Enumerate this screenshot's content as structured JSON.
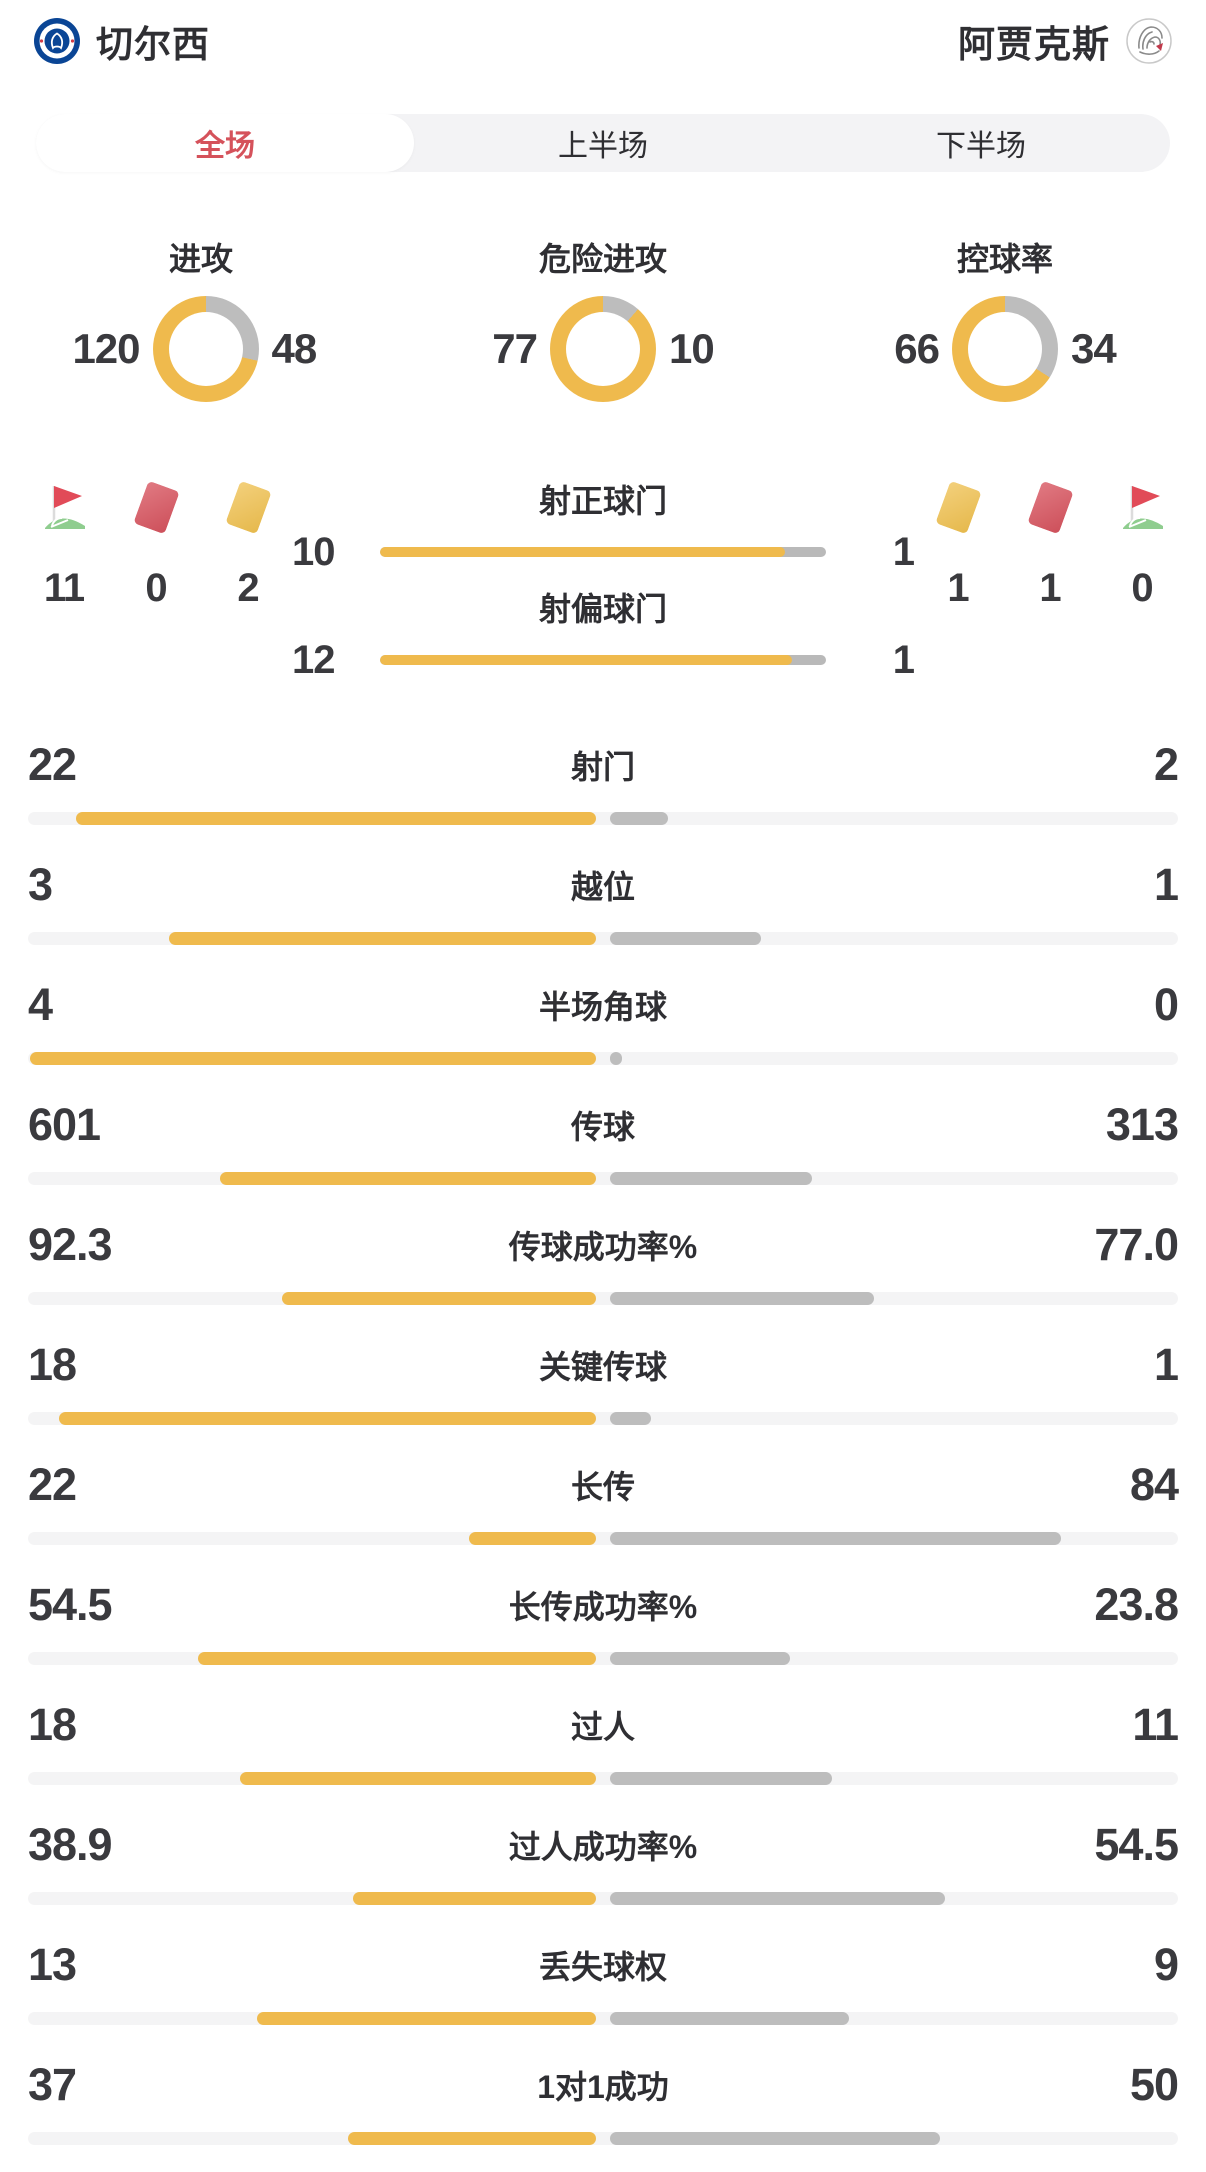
{
  "header": {
    "home": {
      "name": "切尔西",
      "logo_icon": "chelsea-crest-icon"
    },
    "away": {
      "name": "阿贾克斯",
      "logo_icon": "ajax-crest-icon"
    }
  },
  "tabs": [
    {
      "id": "full",
      "label": "全场",
      "active": true
    },
    {
      "id": "first-half",
      "label": "上半场",
      "active": false
    },
    {
      "id": "second-half",
      "label": "下半场",
      "active": false
    }
  ],
  "colors": {
    "home_accent": "#efba4d",
    "away_accent": "#bdbdbd",
    "active_tab_text": "#d5525b",
    "red_card": "#d8545f",
    "yellow_card": "#efc04f",
    "flag_red": "#e14b58",
    "flag_green": "#8fcd8f"
  },
  "donuts": [
    {
      "label": "进攻",
      "home": 120,
      "away": 48
    },
    {
      "label": "危险进攻",
      "home": 77,
      "away": 10
    },
    {
      "label": "控球率",
      "home": 66,
      "away": 34
    }
  ],
  "discipline": {
    "home": {
      "corner_flags": 11,
      "red_cards": 0,
      "yellow_cards": 2
    },
    "away": {
      "yellow_cards": 1,
      "red_cards": 1,
      "corner_flags": 0
    }
  },
  "shot_bars": [
    {
      "label": "射正球门",
      "home": 10,
      "away": 1
    },
    {
      "label": "射偏球门",
      "home": 12,
      "away": 1
    }
  ],
  "stats": [
    {
      "label": "射门",
      "home": "22",
      "away": "2"
    },
    {
      "label": "越位",
      "home": "3",
      "away": "1"
    },
    {
      "label": "半场角球",
      "home": "4",
      "away": "0"
    },
    {
      "label": "传球",
      "home": "601",
      "away": "313"
    },
    {
      "label": "传球成功率%",
      "home": "92.3",
      "away": "77.0"
    },
    {
      "label": "关键传球",
      "home": "18",
      "away": "1"
    },
    {
      "label": "长传",
      "home": "22",
      "away": "84"
    },
    {
      "label": "长传成功率%",
      "home": "54.5",
      "away": "23.8"
    },
    {
      "label": "过人",
      "home": "18",
      "away": "11"
    },
    {
      "label": "过人成功率%",
      "home": "38.9",
      "away": "54.5"
    },
    {
      "label": "丢失球权",
      "home": "13",
      "away": "9"
    },
    {
      "label": "1对1成功",
      "home": "37",
      "away": "50"
    }
  ]
}
